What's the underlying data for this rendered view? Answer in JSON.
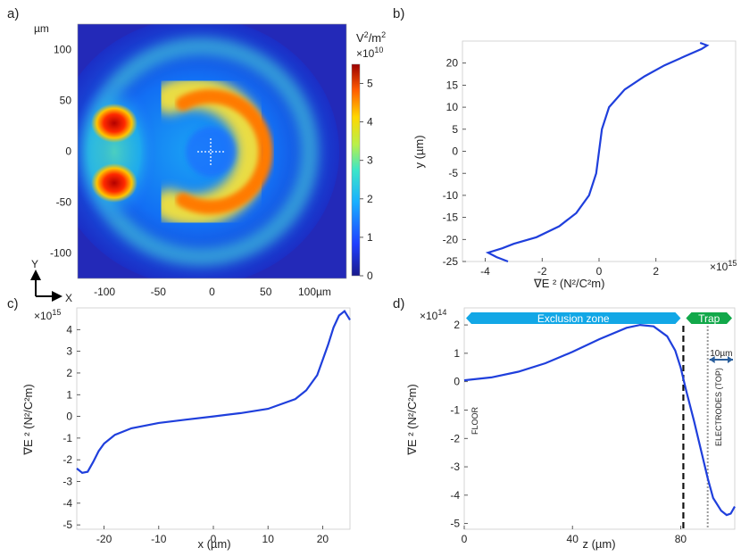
{
  "panels": {
    "a": "a)",
    "b": "b)",
    "c": "c)",
    "d": "d)"
  },
  "chart_data": [
    {
      "id": "a",
      "type": "heatmap",
      "xlim": [
        -125,
        125
      ],
      "ylim": [
        -125,
        125
      ],
      "x_ticks": [
        -100,
        -50,
        0,
        50
      ],
      "x_tick_labels": [
        "-100",
        "-50",
        "0",
        "50"
      ],
      "x_end_label": "100µm",
      "y_ticks": [
        -100,
        -50,
        0,
        50,
        100
      ],
      "y_tick_labels": [
        "-100",
        "-50",
        "0",
        "50",
        "100"
      ],
      "y_unit": "µm",
      "axis_indicator": {
        "y": "Y",
        "x": "X"
      },
      "colorbar": {
        "unit_base": "V",
        "unit_sup": "2",
        "unit_mid": "/m",
        "unit_sup2": "2",
        "scale_base": "×10",
        "scale_exp": "10",
        "range": [
          0,
          5.5
        ],
        "ticks": [
          0,
          1,
          2,
          3,
          4,
          5
        ],
        "tick_labels": [
          "0",
          "1",
          "2",
          "3",
          "4",
          "5"
        ]
      },
      "features": [
        {
          "kind": "spot",
          "x": -100,
          "y": 30,
          "level": 5.4
        },
        {
          "kind": "spot",
          "x": -100,
          "y": -30,
          "level": 5.4
        },
        {
          "kind": "arc",
          "center_x": 0,
          "center_y": 0,
          "radius": 50,
          "level": 4.7
        }
      ]
    },
    {
      "id": "b",
      "type": "line",
      "xlim": [
        -4.8,
        4.8
      ],
      "ylim": [
        -25,
        25
      ],
      "x_ticks": [
        -4,
        -2,
        0,
        2
      ],
      "x_tick_labels": [
        "-4",
        "-2",
        "0",
        "2"
      ],
      "x_scale_base": "×10",
      "x_scale_exp": "15",
      "xlabel": "∇E ² (N²/C²m)",
      "y_ticks": [
        -25,
        -20,
        -15,
        -10,
        -5,
        0,
        5,
        10,
        15,
        20
      ],
      "y_tick_labels": [
        "-25",
        "-20",
        "-15",
        "-10",
        "-5",
        "0",
        "5",
        "10",
        "15",
        "20"
      ],
      "ylabel": "y (µm)",
      "color": "#1f3fdc",
      "series": [
        {
          "x": [
            -3.2,
            -3.6,
            -3.9,
            -3.4,
            -3.0,
            -2.2,
            -1.4,
            -0.8,
            -0.35,
            -0.1,
            0.0,
            0.1,
            0.35,
            0.9,
            1.6,
            2.3,
            3.0,
            3.6,
            3.8,
            3.55
          ],
          "y": [
            -25,
            -24,
            -23,
            -22,
            -21,
            -19.5,
            -17,
            -14,
            -10,
            -5,
            0,
            5,
            10,
            14,
            17,
            19.5,
            21.5,
            23.2,
            24,
            24.6
          ]
        }
      ]
    },
    {
      "id": "c",
      "type": "line",
      "xlim": [
        -25,
        25
      ],
      "ylim": [
        -5.2,
        5.0
      ],
      "x_ticks": [
        -20,
        -10,
        0,
        10,
        20
      ],
      "x_tick_labels": [
        "-20",
        "-10",
        "0",
        "10",
        "20"
      ],
      "xlabel": "x (µm)",
      "y_ticks": [
        -5,
        -4,
        -3,
        -2,
        -1,
        0,
        1,
        2,
        3,
        4
      ],
      "y_tick_labels": [
        "-5",
        "-4",
        "-3",
        "-2",
        "-1",
        "0",
        "1",
        "2",
        "3",
        "4"
      ],
      "y_scale_base": "×10",
      "y_scale_exp": "15",
      "ylabel": "∇E ² (N²/C²m)",
      "color": "#1f3fdc",
      "series": [
        {
          "x": [
            -25,
            -24,
            -23,
            -22,
            -21,
            -20,
            -18,
            -15,
            -10,
            -5,
            0,
            5,
            10,
            15,
            17,
            19,
            20,
            21,
            22,
            23,
            24,
            25
          ],
          "y": [
            -2.4,
            -2.6,
            -2.55,
            -2.1,
            -1.6,
            -1.25,
            -0.85,
            -0.55,
            -0.3,
            -0.15,
            0.0,
            0.15,
            0.35,
            0.8,
            1.2,
            1.9,
            2.6,
            3.3,
            4.1,
            4.65,
            4.85,
            4.45
          ]
        }
      ]
    },
    {
      "id": "d",
      "type": "line",
      "xlim": [
        0,
        100
      ],
      "ylim": [
        -5.2,
        2.6
      ],
      "x_ticks": [
        0,
        40,
        80
      ],
      "x_tick_labels": [
        "0",
        "40",
        "80"
      ],
      "xlabel": "z (µm)",
      "y_ticks": [
        -5,
        -4,
        -3,
        -2,
        -1,
        0,
        1,
        2
      ],
      "y_tick_labels": [
        "-5",
        "-4",
        "-3",
        "-2",
        "-1",
        "0",
        "1",
        "2"
      ],
      "y_scale_base": "×10",
      "y_scale_exp": "14",
      "ylabel": "∇E ² (N²/C²m)",
      "color": "#1f3fdc",
      "series": [
        {
          "x": [
            0,
            10,
            20,
            30,
            40,
            50,
            60,
            65,
            70,
            75,
            78,
            80,
            82,
            85,
            88,
            90,
            92,
            95,
            97,
            98.5,
            100
          ],
          "y": [
            0.05,
            0.15,
            0.35,
            0.65,
            1.05,
            1.5,
            1.9,
            2.0,
            1.95,
            1.6,
            1.1,
            0.5,
            -0.3,
            -1.4,
            -2.6,
            -3.4,
            -4.1,
            -4.55,
            -4.7,
            -4.65,
            -4.4
          ]
        }
      ],
      "vlines": [
        {
          "x": 81,
          "style": "dashed"
        },
        {
          "x": 90,
          "style": "dotted"
        }
      ],
      "zones": [
        {
          "label": "Exclusion zone",
          "from": 0,
          "to": 81,
          "color": "#12a7e6"
        },
        {
          "label": "Trap",
          "from": 81,
          "to": 100,
          "color": "#12a84a"
        }
      ],
      "width_marker": {
        "label": "10µm",
        "from": 90,
        "to": 100,
        "color": "#2a5e9c"
      },
      "annotations": [
        {
          "text": "FLOOR",
          "x": 4
        },
        {
          "text": "ELECTRODES (TOP)",
          "x": 94
        }
      ]
    }
  ]
}
